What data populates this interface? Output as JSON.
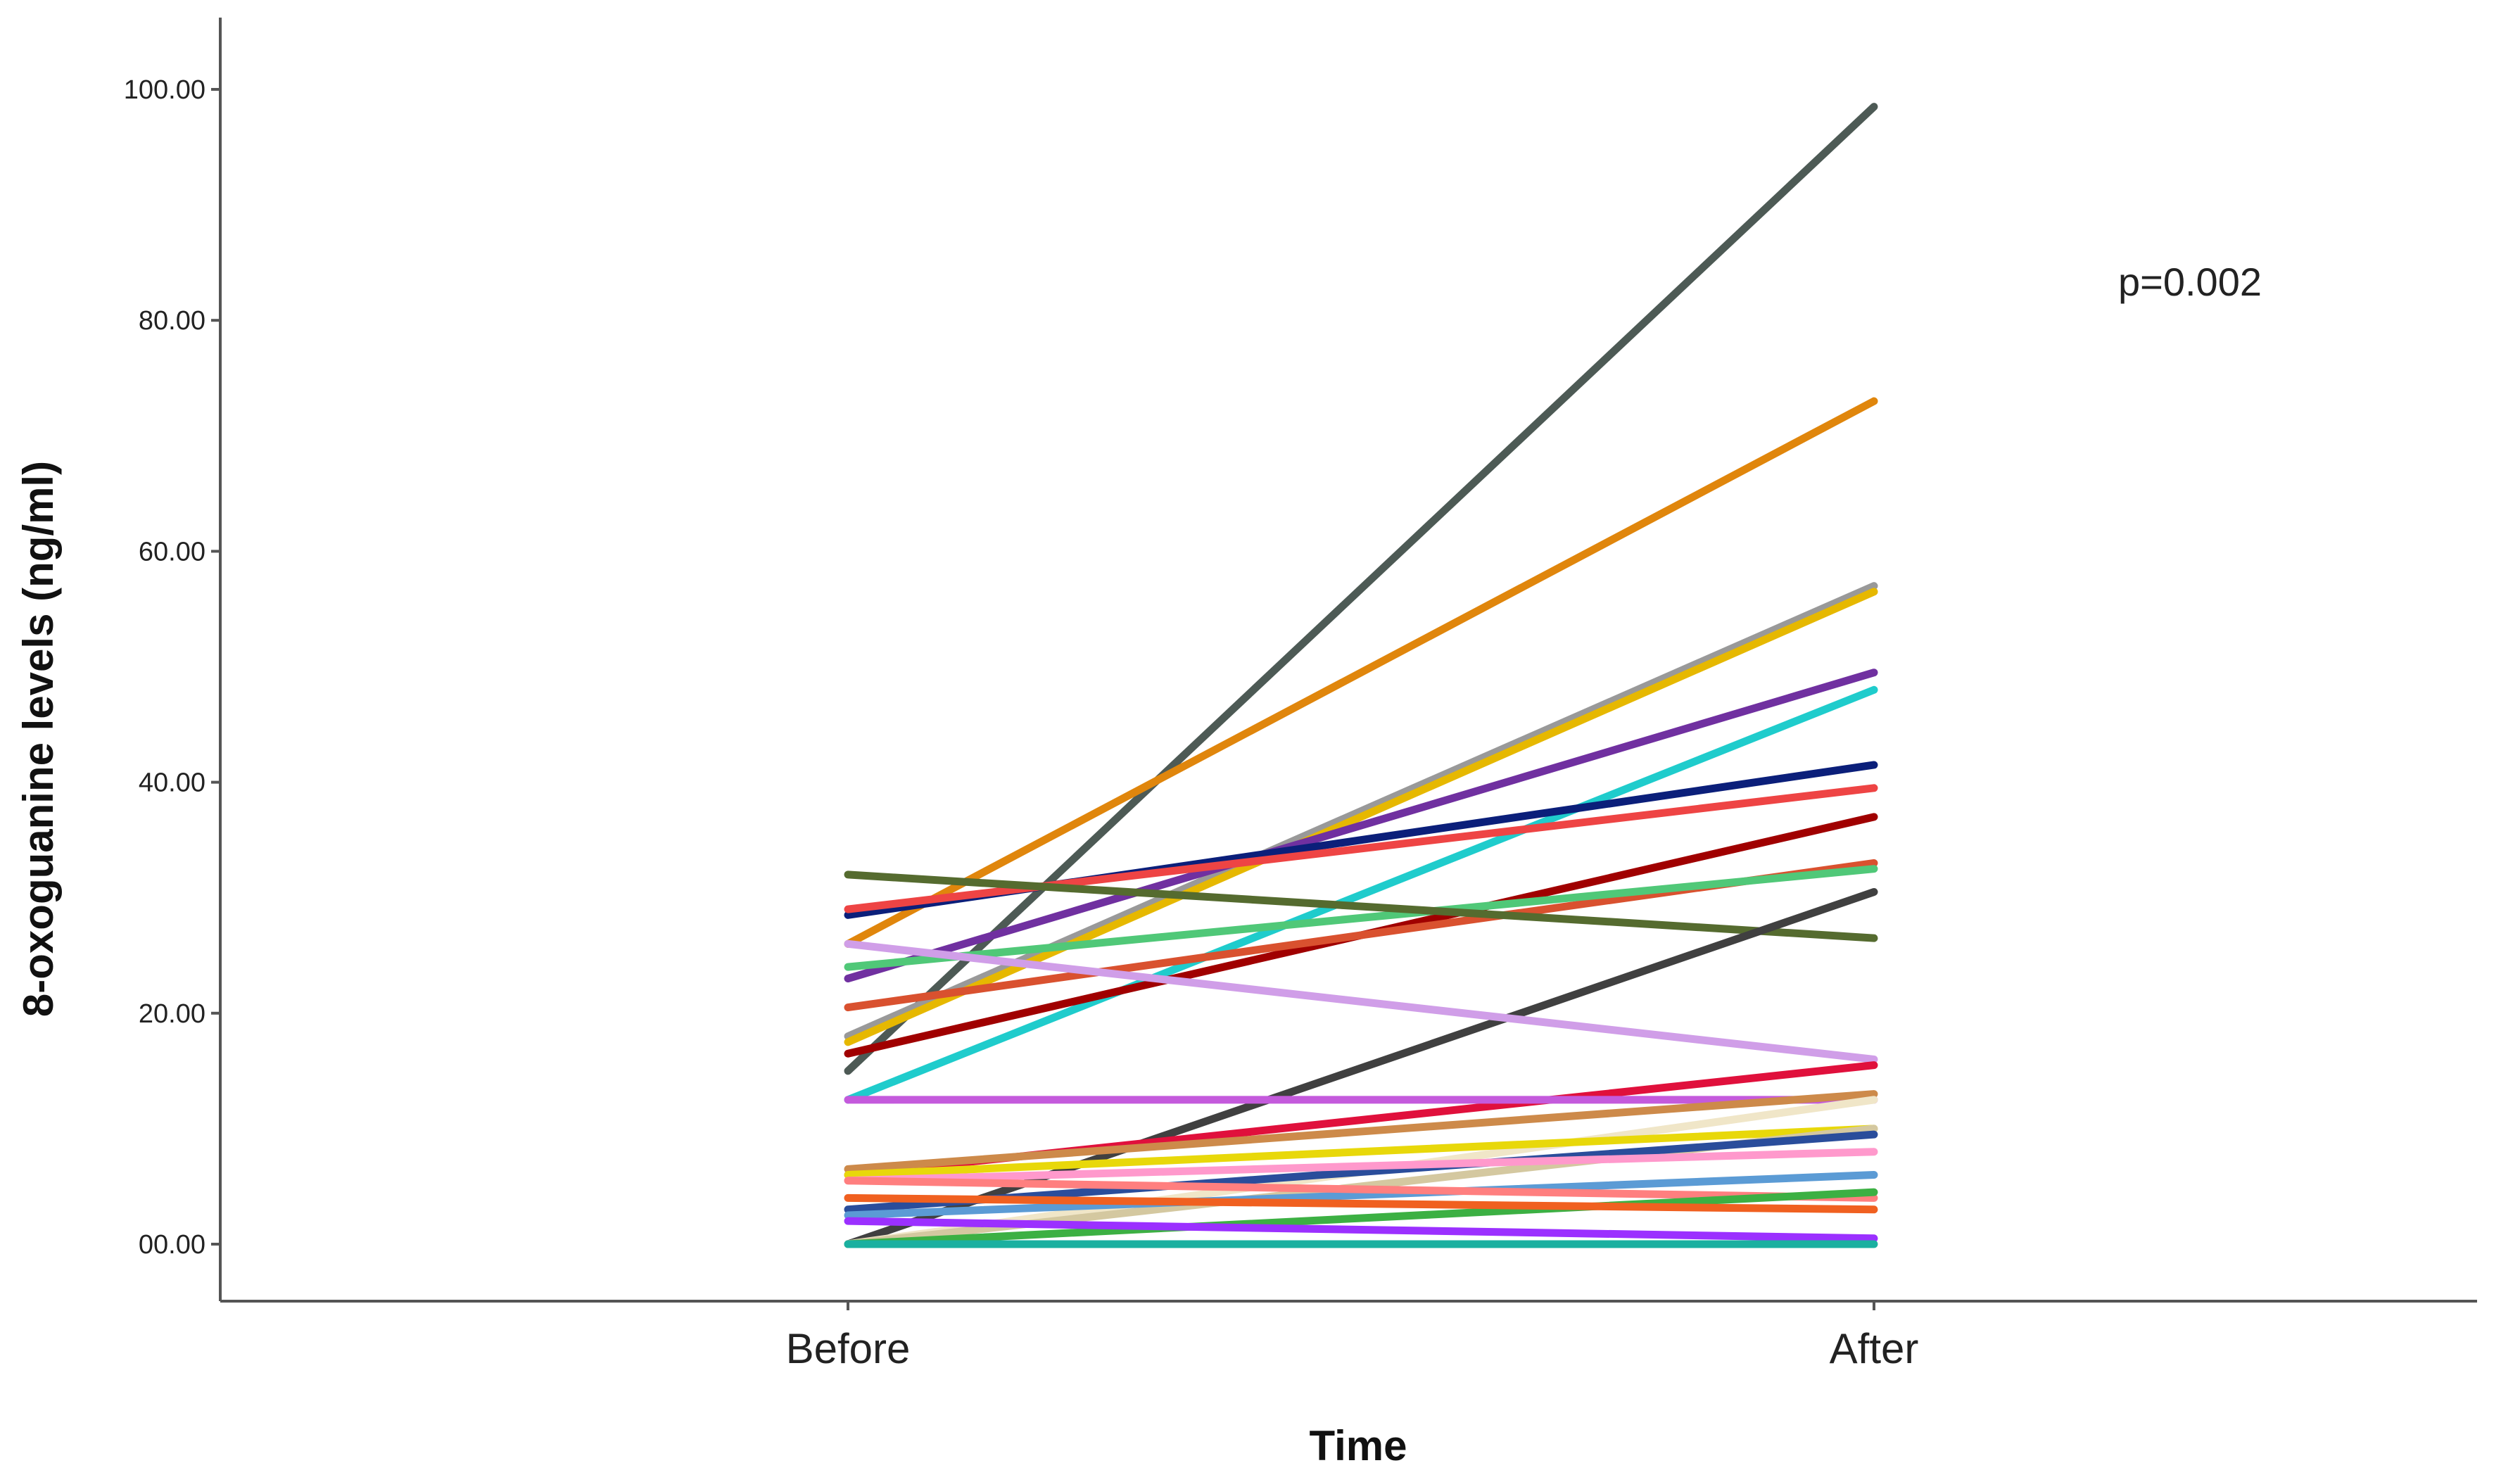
{
  "chart_data": {
    "type": "line",
    "title": "",
    "xlabel": "Time",
    "ylabel": "8-oxoguanine levels (ng/ml)",
    "categories": [
      "Before",
      "After"
    ],
    "ylim": [
      -5,
      105
    ],
    "yticks": [
      0,
      20,
      40,
      60,
      80,
      100
    ],
    "ytick_labels": [
      "00.00",
      "20.00",
      "40.00",
      "60.00",
      "80.00",
      "100.00"
    ],
    "grid": false,
    "legend": "none",
    "annotations": [
      {
        "text": "p=0.002"
      }
    ],
    "series": [
      {
        "values": [
          15,
          98.5
        ],
        "color": "#4d5a55"
      },
      {
        "values": [
          26,
          73
        ],
        "color": "#e0860c"
      },
      {
        "values": [
          18,
          57
        ],
        "color": "#999999"
      },
      {
        "values": [
          17.5,
          56.5
        ],
        "color": "#e6b800"
      },
      {
        "values": [
          23,
          49.5
        ],
        "color": "#7030a0"
      },
      {
        "values": [
          12.5,
          48
        ],
        "color": "#1fcccc"
      },
      {
        "values": [
          28.5,
          41.5
        ],
        "color": "#0b1f7a"
      },
      {
        "values": [
          29,
          39.5
        ],
        "color": "#ee4444"
      },
      {
        "values": [
          16.5,
          37
        ],
        "color": "#a00000"
      },
      {
        "values": [
          20.5,
          33
        ],
        "color": "#d9512f"
      },
      {
        "values": [
          24,
          32.5
        ],
        "color": "#50c878"
      },
      {
        "values": [
          32,
          26.5
        ],
        "color": "#556b2f"
      },
      {
        "values": [
          0,
          30.5
        ],
        "color": "#404040"
      },
      {
        "values": [
          26,
          16
        ],
        "color": "#d09ee8"
      },
      {
        "values": [
          6,
          15.5
        ],
        "color": "#e0103c"
      },
      {
        "values": [
          12.5,
          12.5
        ],
        "color": "#c45adc"
      },
      {
        "values": [
          6.5,
          13
        ],
        "color": "#cd8a4a"
      },
      {
        "values": [
          0,
          12.5
        ],
        "color": "#f0e6c8"
      },
      {
        "values": [
          6,
          10
        ],
        "color": "#e8d80a"
      },
      {
        "values": [
          0,
          10
        ],
        "color": "#d4c8a0"
      },
      {
        "values": [
          3,
          9.5
        ],
        "color": "#2a4d9b"
      },
      {
        "values": [
          5.5,
          8
        ],
        "color": "#ff99cc"
      },
      {
        "values": [
          2.5,
          6
        ],
        "color": "#5b9bd5"
      },
      {
        "values": [
          5.5,
          4
        ],
        "color": "#ff7f7f"
      },
      {
        "values": [
          0,
          4.5
        ],
        "color": "#3cb043"
      },
      {
        "values": [
          4,
          3
        ],
        "color": "#f06020"
      },
      {
        "values": [
          2,
          0.5
        ],
        "color": "#9b30ff"
      },
      {
        "values": [
          0,
          0
        ],
        "color": "#1ab0a0"
      }
    ]
  }
}
